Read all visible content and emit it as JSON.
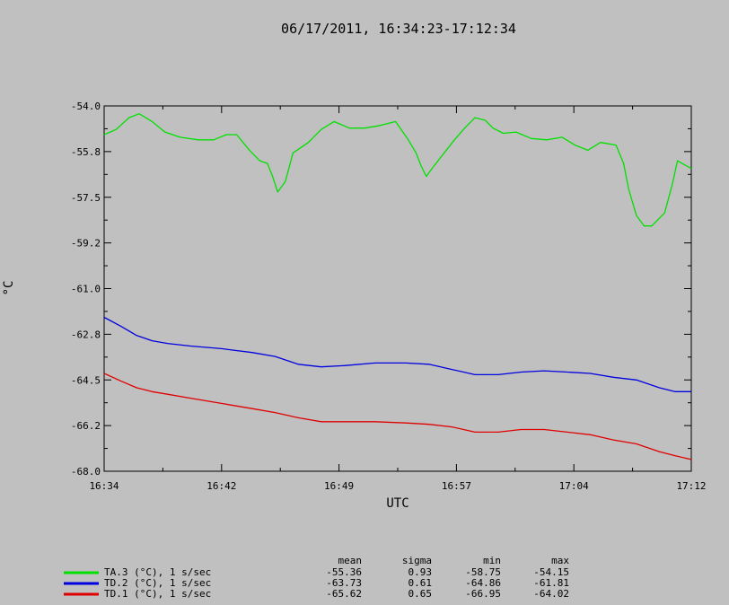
{
  "chart_data": {
    "type": "line",
    "title": "06/17/2011, 16:34:23-17:12:34",
    "xlabel": "UTC",
    "ylabel": "°C",
    "x_ticks": [
      "16:34",
      "16:42",
      "16:49",
      "16:57",
      "17:04",
      "17:12"
    ],
    "y_ticks": [
      "-54.0",
      "-55.8",
      "-57.5",
      "-59.2",
      "-61.0",
      "-62.8",
      "-64.5",
      "-66.2",
      "-68.0"
    ],
    "ylim": [
      -68.0,
      -54.0
    ],
    "xlim": [
      "16:34:23",
      "17:12:34"
    ],
    "grid": false,
    "series": [
      {
        "name": "TA.3 (°C), 1 s/sec",
        "color": "#00e000",
        "x": [
          "16:34:23",
          "16:35:10",
          "16:36:00",
          "16:36:40",
          "16:37:30",
          "16:38:20",
          "16:39:20",
          "16:40:30",
          "16:41:30",
          "16:42:20",
          "16:43:00",
          "16:43:50",
          "16:44:30",
          "16:45:00",
          "16:45:20",
          "16:45:40",
          "16:46:10",
          "16:46:40",
          "16:47:40",
          "16:48:30",
          "16:49:20",
          "16:50:20",
          "16:51:20",
          "16:52:20",
          "16:53:20",
          "16:54:10",
          "16:54:40",
          "16:55:00",
          "16:55:20",
          "16:55:50",
          "16:56:30",
          "16:57:10",
          "16:57:50",
          "16:58:30",
          "16:59:10",
          "16:59:40",
          "17:00:20",
          "17:01:10",
          "17:02:10",
          "17:03:10",
          "17:04:10",
          "17:05:00",
          "17:05:50",
          "17:06:40",
          "17:07:40",
          "17:08:10",
          "17:08:30",
          "17:09:00",
          "17:09:30",
          "17:10:00",
          "17:10:20",
          "17:10:50",
          "17:11:20",
          "17:11:40",
          "17:12:34"
        ],
        "values": [
          -55.1,
          -54.9,
          -54.45,
          -54.3,
          -54.6,
          -55.0,
          -55.2,
          -55.3,
          -55.3,
          -55.1,
          -55.1,
          -55.7,
          -56.1,
          -56.2,
          -56.7,
          -57.3,
          -56.9,
          -55.8,
          -55.4,
          -54.9,
          -54.6,
          -54.85,
          -54.85,
          -54.75,
          -54.6,
          -55.3,
          -55.8,
          -56.3,
          -56.7,
          -56.3,
          -55.8,
          -55.3,
          -54.85,
          -54.45,
          -54.55,
          -54.85,
          -55.05,
          -55.0,
          -55.25,
          -55.3,
          -55.2,
          -55.5,
          -55.7,
          -55.4,
          -55.5,
          -56.2,
          -57.2,
          -58.2,
          -58.6,
          -58.6,
          -58.4,
          -58.1,
          -57.0,
          -56.1,
          -56.4
        ]
      },
      {
        "name": "TD.2 (°C), 1 s/sec",
        "color": "#0000e0",
        "x": [
          "16:34:23",
          "16:35:30",
          "16:36:30",
          "16:37:30",
          "16:38:30",
          "16:40:00",
          "16:42:00",
          "16:44:00",
          "16:45:30",
          "16:47:00",
          "16:48:30",
          "16:50:00",
          "16:52:00",
          "16:54:00",
          "16:55:30",
          "16:57:00",
          "16:58:30",
          "17:00:00",
          "17:01:30",
          "17:03:00",
          "17:04:30",
          "17:06:00",
          "17:07:30",
          "17:09:00",
          "17:10:30",
          "17:11:30",
          "17:12:34"
        ],
        "values": [
          -62.1,
          -62.45,
          -62.8,
          -63.0,
          -63.1,
          -63.2,
          -63.3,
          -63.45,
          -63.6,
          -63.9,
          -64.0,
          -63.95,
          -63.85,
          -63.85,
          -63.9,
          -64.1,
          -64.3,
          -64.3,
          -64.2,
          -64.15,
          -64.2,
          -64.25,
          -64.4,
          -64.5,
          -64.8,
          -64.95,
          -64.95
        ]
      },
      {
        "name": "TD.1 (°C), 1 s/sec",
        "color": "#e00000",
        "x": [
          "16:34:23",
          "16:35:30",
          "16:36:30",
          "16:37:30",
          "16:38:30",
          "16:40:00",
          "16:42:00",
          "16:44:00",
          "16:45:30",
          "16:47:00",
          "16:48:30",
          "16:50:00",
          "16:52:00",
          "16:54:00",
          "16:55:30",
          "16:57:00",
          "16:58:30",
          "17:00:00",
          "17:01:30",
          "17:03:00",
          "17:04:30",
          "17:06:00",
          "17:07:30",
          "17:09:00",
          "17:10:30",
          "17:11:30",
          "17:12:34"
        ],
        "values": [
          -64.25,
          -64.55,
          -64.8,
          -64.95,
          -65.05,
          -65.2,
          -65.4,
          -65.6,
          -65.75,
          -65.95,
          -66.1,
          -66.1,
          -66.1,
          -66.15,
          -66.2,
          -66.3,
          -66.5,
          -66.5,
          -66.4,
          -66.4,
          -66.5,
          -66.6,
          -66.8,
          -66.95,
          -67.25,
          -67.4,
          -67.55
        ]
      }
    ],
    "stats_header": [
      "mean",
      "sigma",
      "min",
      "max"
    ],
    "stats": [
      [
        "-55.36",
        "0.93",
        "-58.75",
        "-54.15"
      ],
      [
        "-63.73",
        "0.61",
        "-64.86",
        "-61.81"
      ],
      [
        "-65.62",
        "0.65",
        "-66.95",
        "-64.02"
      ]
    ]
  }
}
